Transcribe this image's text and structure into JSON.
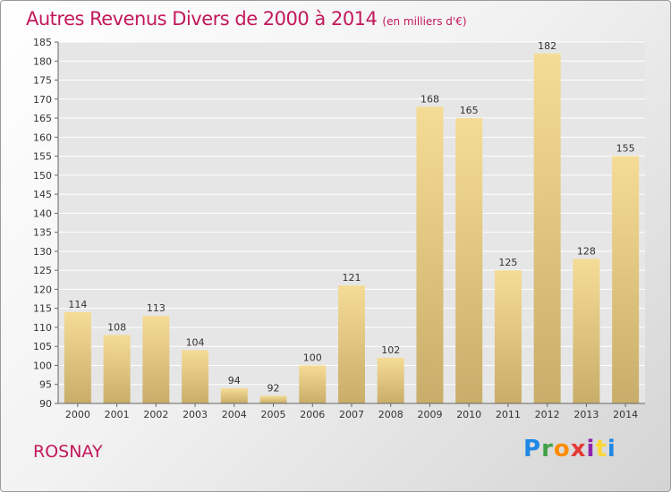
{
  "title": "Autres Revenus Divers de 2000 à 2014",
  "subtitle": "(en milliers d'€)",
  "place": "ROSNAY",
  "logo": "Proxiti",
  "colors": {
    "title": "#c2185b",
    "bar_light": "#f5dc96",
    "bar_dark": "#c9ad6a",
    "grid": "#ffffff"
  },
  "chart_data": {
    "type": "bar",
    "categories": [
      "2000",
      "2001",
      "2002",
      "2003",
      "2004",
      "2005",
      "2006",
      "2007",
      "2008",
      "2009",
      "2010",
      "2011",
      "2012",
      "2013",
      "2014"
    ],
    "values": [
      114,
      108,
      113,
      104,
      94,
      92,
      100,
      121,
      102,
      168,
      165,
      125,
      182,
      128,
      155
    ],
    "ylim": [
      90,
      185
    ],
    "yticks": [
      90,
      95,
      100,
      105,
      110,
      115,
      120,
      125,
      130,
      135,
      140,
      145,
      150,
      155,
      160,
      165,
      170,
      175,
      180,
      185
    ],
    "grid": true,
    "data_labels": true
  }
}
